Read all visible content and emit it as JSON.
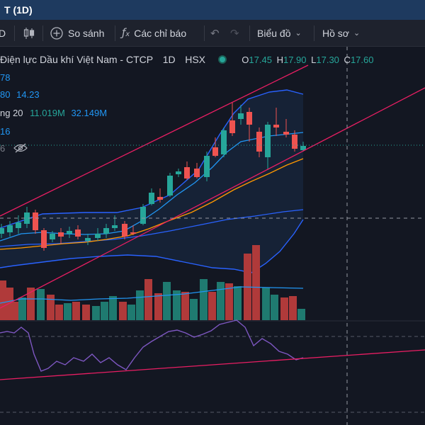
{
  "window": {
    "title_fragment": "T (1D)"
  },
  "toolbar": {
    "interval_fragment": "D",
    "compare_label": "So sánh",
    "indicators_label": "Các chỉ báo",
    "chart_type_label": "Biểu đồ",
    "profile_label": "Hồ sơ"
  },
  "legend": {
    "symbol_name": "Điện lực Dầu khí Việt Nam - CTCP",
    "interval": "1D",
    "exchange": "HSX",
    "open_label": "O",
    "open_value": "17.45",
    "high_label": "H",
    "high_value": "17.90",
    "low_label": "L",
    "low_value": "17.30",
    "close_label": "C",
    "close_value": "17.60",
    "line1_value": "78",
    "line2_value_a": "80",
    "line2_value_b": "14.23",
    "line3_label": "ng 20",
    "line3_value_a": "11.019M",
    "line3_value_b": "32.149M",
    "line4_value": "16",
    "line5_value": "6"
  },
  "colors": {
    "up": "#26a69a",
    "down": "#ef5350",
    "channel": "#e91e63",
    "ma_short": "#2196f3",
    "ma_long": "#ff9800",
    "rsi": "#7e57c2",
    "background": "#131722"
  },
  "icons": {
    "candles": "candlestick-icon",
    "compare": "plus-circle-icon",
    "indicators": "fx-icon",
    "undo": "undo-icon",
    "redo": "redo-icon",
    "hide": "eye-crossed-icon"
  }
}
